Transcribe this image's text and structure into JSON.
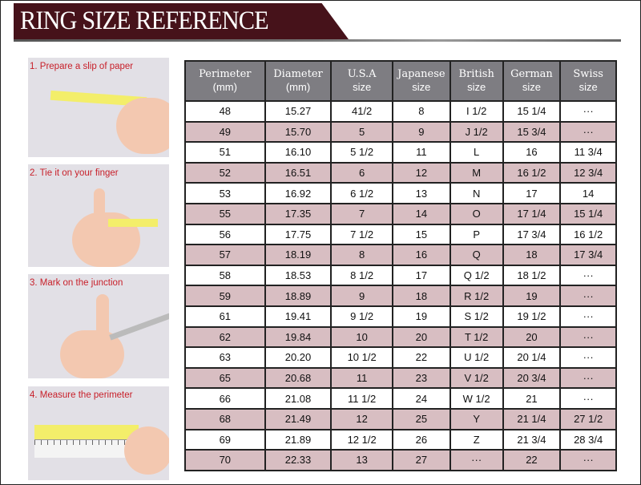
{
  "title": "RING SIZE REFERENCE",
  "steps": [
    "1. Prepare a slip of paper",
    "2. Tie it on your finger",
    "3. Mark on the junction",
    "4. Measure the perimeter"
  ],
  "colors": {
    "banner": "#46121a",
    "header": "#7e7d82",
    "alt_row": "#d8bec2",
    "step_label": "#c8202a"
  },
  "table": {
    "headers": [
      [
        "Perimeter",
        "(mm)"
      ],
      [
        "Diameter",
        "(mm)"
      ],
      [
        "U.S.A",
        "size"
      ],
      [
        "Japanese",
        "size"
      ],
      [
        "British",
        "size"
      ],
      [
        "German",
        "size"
      ],
      [
        "Swiss",
        "size"
      ]
    ],
    "rows": [
      [
        "48",
        "15.27",
        "41/2",
        "8",
        "I 1/2",
        "15 1/4",
        "···"
      ],
      [
        "49",
        "15.70",
        "5",
        "9",
        "J 1/2",
        "15 3/4",
        "···"
      ],
      [
        "51",
        "16.10",
        "5 1/2",
        "11",
        "L",
        "16",
        "11 3/4"
      ],
      [
        "52",
        "16.51",
        "6",
        "12",
        "M",
        "16 1/2",
        "12 3/4"
      ],
      [
        "53",
        "16.92",
        "6 1/2",
        "13",
        "N",
        "17",
        "14"
      ],
      [
        "55",
        "17.35",
        "7",
        "14",
        "O",
        "17 1/4",
        "15 1/4"
      ],
      [
        "56",
        "17.75",
        "7 1/2",
        "15",
        "P",
        "17 3/4",
        "16 1/2"
      ],
      [
        "57",
        "18.19",
        "8",
        "16",
        "Q",
        "18",
        "17 3/4"
      ],
      [
        "58",
        "18.53",
        "8 1/2",
        "17",
        "Q  1/2",
        "18 1/2",
        "···"
      ],
      [
        "59",
        "18.89",
        "9",
        "18",
        "R 1/2",
        "19",
        "···"
      ],
      [
        "61",
        "19.41",
        "9 1/2",
        "19",
        "S 1/2",
        "19 1/2",
        "···"
      ],
      [
        "62",
        "19.84",
        "10",
        "20",
        "T 1/2",
        "20",
        "···"
      ],
      [
        "63",
        "20.20",
        "10 1/2",
        "22",
        "U 1/2",
        "20 1/4",
        "···"
      ],
      [
        "65",
        "20.68",
        "11",
        "23",
        "V 1/2",
        "20 3/4",
        "···"
      ],
      [
        "66",
        "21.08",
        "11 1/2",
        "24",
        "W 1/2",
        "21",
        "···"
      ],
      [
        "68",
        "21.49",
        "12",
        "25",
        "Y",
        "21 1/4",
        "27 1/2"
      ],
      [
        "69",
        "21.89",
        "12 1/2",
        "26",
        "Z",
        "21 3/4",
        "28 3/4"
      ],
      [
        "70",
        "22.33",
        "13",
        "27",
        "···",
        "22",
        "···"
      ]
    ]
  }
}
